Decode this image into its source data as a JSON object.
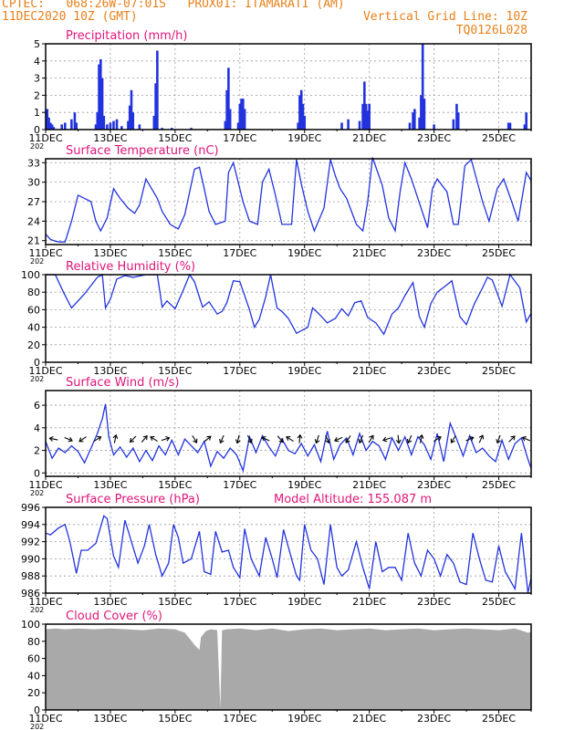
{
  "header": {
    "line1": "CPTEC:   068:26W-07:01S   PROX01: ITAMARATI (AM)",
    "line2_left": "11DEC2020 10Z (GMT)",
    "line2_right": "Vertical Grid Line: 10Z",
    "line3_right": "TQ0126L028"
  },
  "colors": {
    "header": "#e8801a",
    "title": "#e0167a",
    "series": "#2233dd",
    "cloud": "#a9a9a9",
    "grid": "#999999"
  },
  "date_labels": [
    "11DEC",
    "13DEC",
    "15DEC",
    "17DEC",
    "19DEC",
    "21DEC",
    "23DEC",
    "25DEC"
  ],
  "year_stub": "202",
  "chart_data": [
    {
      "id": "precip",
      "type": "bar",
      "title": "Precipitation (mm/h)",
      "ylim": [
        0,
        5
      ],
      "yticks": [
        0,
        1,
        2,
        3,
        4,
        5
      ],
      "grid": true,
      "x_unit": "days since 11DEC 10Z",
      "bars": [
        [
          0.05,
          1.2
        ],
        [
          0.1,
          0.7
        ],
        [
          0.15,
          0.4
        ],
        [
          0.2,
          0.3
        ],
        [
          0.25,
          0.15
        ],
        [
          0.5,
          0.3
        ],
        [
          0.6,
          0.4
        ],
        [
          0.8,
          0.6
        ],
        [
          0.9,
          1.0
        ],
        [
          0.95,
          0.4
        ],
        [
          1.55,
          0.3
        ],
        [
          1.6,
          1.0
        ],
        [
          1.65,
          3.8
        ],
        [
          1.7,
          4.1
        ],
        [
          1.75,
          3.0
        ],
        [
          1.8,
          0.8
        ],
        [
          1.9,
          0.3
        ],
        [
          2.0,
          0.4
        ],
        [
          2.1,
          0.5
        ],
        [
          2.2,
          0.6
        ],
        [
          2.35,
          0.2
        ],
        [
          2.55,
          0.5
        ],
        [
          2.6,
          1.4
        ],
        [
          2.65,
          2.3
        ],
        [
          2.7,
          1.0
        ],
        [
          2.9,
          0.3
        ],
        [
          3.35,
          0.8
        ],
        [
          3.4,
          2.7
        ],
        [
          3.45,
          4.6
        ],
        [
          3.6,
          0.1
        ],
        [
          3.9,
          0.1
        ],
        [
          4.5,
          0.1
        ],
        [
          5.55,
          0.5
        ],
        [
          5.6,
          2.3
        ],
        [
          5.65,
          3.6
        ],
        [
          5.7,
          1.2
        ],
        [
          5.95,
          0.4
        ],
        [
          6.0,
          1.5
        ],
        [
          6.05,
          1.8
        ],
        [
          6.1,
          1.8
        ],
        [
          6.15,
          1.2
        ],
        [
          7.8,
          0.4
        ],
        [
          7.85,
          2.0
        ],
        [
          7.9,
          2.3
        ],
        [
          7.95,
          1.5
        ],
        [
          8.0,
          0.8
        ],
        [
          9.15,
          0.4
        ],
        [
          9.35,
          0.6
        ],
        [
          9.7,
          0.5
        ],
        [
          9.8,
          1.5
        ],
        [
          9.85,
          2.8
        ],
        [
          9.9,
          1.5
        ],
        [
          9.95,
          1.1
        ],
        [
          10.0,
          1.5
        ],
        [
          11.25,
          0.4
        ],
        [
          11.35,
          1.0
        ],
        [
          11.4,
          1.2
        ],
        [
          11.55,
          0.7
        ],
        [
          11.6,
          2.0
        ],
        [
          11.65,
          5.0
        ],
        [
          11.7,
          1.8
        ],
        [
          12.0,
          0.3
        ],
        [
          12.6,
          0.6
        ],
        [
          12.7,
          1.5
        ],
        [
          12.75,
          1.0
        ],
        [
          14.3,
          0.4
        ],
        [
          14.35,
          0.4
        ],
        [
          14.8,
          0.3
        ],
        [
          14.85,
          1.0
        ]
      ]
    },
    {
      "id": "temp",
      "type": "line",
      "title": "Surface Temperature (nC)",
      "ylim": [
        20.4,
        33.6
      ],
      "yticks": [
        21,
        24,
        27,
        30,
        33
      ],
      "grid": true,
      "x": [
        0,
        0.15,
        0.3,
        0.45,
        0.6,
        0.8,
        1.0,
        1.2,
        1.4,
        1.55,
        1.7,
        1.9,
        2.1,
        2.3,
        2.55,
        2.75,
        2.9,
        3.1,
        3.25,
        3.45,
        3.6,
        3.85,
        4.1,
        4.3,
        4.6,
        4.75,
        4.9,
        5.05,
        5.25,
        5.55,
        5.65,
        5.8,
        5.95,
        6.1,
        6.3,
        6.55,
        6.7,
        6.9,
        7.1,
        7.3,
        7.6,
        7.75,
        7.9,
        8.1,
        8.3,
        8.6,
        8.8,
        8.95,
        9.1,
        9.3,
        9.6,
        9.8,
        9.95,
        10.1,
        10.4,
        10.6,
        10.8,
        10.95,
        11.1,
        11.3,
        11.6,
        11.8,
        11.95,
        12.1,
        12.4,
        12.6,
        12.75,
        12.95,
        13.15,
        13.5,
        13.7,
        13.95,
        14.15,
        14.4,
        14.6,
        14.85,
        15.0
      ],
      "y": [
        22,
        21.2,
        20.9,
        20.8,
        20.8,
        24,
        28,
        27.5,
        27,
        24,
        22.5,
        24.5,
        29,
        27.5,
        26,
        25.2,
        26.5,
        30.5,
        29.2,
        27.5,
        25.5,
        23.5,
        22.8,
        25,
        32,
        32.3,
        29,
        25.5,
        23.5,
        24,
        31.5,
        33,
        30,
        27,
        24,
        23.5,
        30,
        32,
        28,
        23.5,
        23.5,
        33.5,
        29.7,
        25.5,
        22.5,
        26,
        33.5,
        31,
        29,
        27.5,
        23.5,
        22.5,
        27,
        33.8,
        29.5,
        24.5,
        22.5,
        28.5,
        33,
        30.5,
        26,
        23,
        29,
        30.5,
        28.5,
        23.5,
        23.5,
        32.5,
        33.5,
        27,
        24,
        29,
        30.5,
        27,
        24,
        31.5,
        30.2
      ]
    },
    {
      "id": "rh",
      "type": "line",
      "title": "Relative Humidity (%)",
      "ylim": [
        0,
        100
      ],
      "yticks": [
        0,
        20,
        40,
        60,
        80,
        100
      ],
      "grid": true,
      "x": [
        0,
        0.3,
        0.55,
        0.8,
        1.2,
        1.6,
        1.75,
        1.85,
        2.0,
        2.2,
        2.45,
        2.7,
        2.85,
        3.1,
        3.45,
        3.6,
        3.75,
        4.0,
        4.25,
        4.45,
        4.6,
        4.85,
        5.05,
        5.3,
        5.45,
        5.6,
        5.8,
        6.0,
        6.3,
        6.45,
        6.6,
        6.8,
        6.95,
        7.15,
        7.3,
        7.5,
        7.75,
        8.1,
        8.25,
        8.45,
        8.7,
        8.95,
        9.15,
        9.35,
        9.55,
        9.75,
        9.95,
        10.2,
        10.45,
        10.7,
        10.9,
        11.1,
        11.35,
        11.55,
        11.7,
        11.9,
        12.1,
        12.35,
        12.55,
        12.8,
        13.0,
        13.25,
        13.5,
        13.65,
        13.8,
        14.1,
        14.35,
        14.65,
        14.85,
        15.0
      ],
      "y": [
        100,
        100,
        80,
        62,
        78,
        97,
        100,
        62,
        72,
        95,
        99,
        97,
        98,
        100,
        100,
        63,
        70,
        61,
        82,
        100,
        92,
        63,
        69,
        55,
        58,
        68,
        93,
        92,
        60,
        40,
        49,
        75,
        100,
        62,
        58,
        50,
        33,
        40,
        62,
        55,
        45,
        50,
        61,
        53,
        68,
        70,
        51,
        45,
        32,
        55,
        62,
        76,
        91,
        52,
        40,
        67,
        80,
        87,
        93,
        52,
        43,
        67,
        85,
        97,
        94,
        64,
        100,
        85,
        46,
        56
      ]
    },
    {
      "id": "wind",
      "type": "line",
      "title": "Surface Wind (m/s)",
      "ylim": [
        -0.3,
        7.3
      ],
      "yticks": [
        0,
        2,
        4,
        6
      ],
      "grid": true,
      "x": [
        0,
        0.2,
        0.4,
        0.6,
        0.8,
        1.0,
        1.2,
        1.4,
        1.6,
        1.75,
        1.85,
        1.95,
        2.1,
        2.3,
        2.5,
        2.7,
        2.9,
        3.1,
        3.3,
        3.5,
        3.7,
        3.9,
        4.1,
        4.3,
        4.5,
        4.7,
        4.9,
        5.1,
        5.3,
        5.5,
        5.7,
        5.9,
        6.1,
        6.3,
        6.5,
        6.7,
        6.9,
        7.1,
        7.3,
        7.5,
        7.7,
        7.9,
        8.1,
        8.3,
        8.5,
        8.7,
        8.9,
        9.1,
        9.3,
        9.5,
        9.7,
        9.9,
        10.1,
        10.3,
        10.5,
        10.7,
        10.9,
        11.1,
        11.3,
        11.5,
        11.7,
        11.9,
        12.1,
        12.3,
        12.5,
        12.7,
        12.9,
        13.1,
        13.3,
        13.5,
        13.7,
        13.9,
        14.1,
        14.3,
        14.5,
        14.7,
        14.9,
        15.0
      ],
      "y": [
        2.8,
        1.3,
        2.2,
        1.8,
        2.4,
        1.9,
        0.9,
        2.2,
        3.5,
        4.8,
        6.1,
        3.2,
        1.6,
        2.3,
        1.4,
        2.2,
        1.0,
        2.0,
        1.1,
        2.4,
        1.6,
        2.9,
        1.6,
        3.0,
        2.4,
        1.8,
        2.8,
        0.6,
        1.9,
        1.3,
        2.2,
        1.6,
        0.2,
        3.2,
        1.8,
        3.3,
        2.3,
        1.5,
        3.0,
        2.0,
        1.7,
        2.6,
        1.5,
        2.5,
        1.0,
        3.7,
        1.2,
        2.5,
        3.1,
        1.6,
        3.5,
        2.0,
        2.8,
        2.4,
        1.2,
        3.1,
        2.0,
        3.2,
        1.6,
        3.2,
        2.5,
        1.2,
        3.5,
        1.0,
        4.4,
        3.0,
        1.5,
        3.3,
        1.8,
        2.2,
        1.5,
        1.0,
        2.9,
        1.2,
        2.6,
        3.1,
        1.2,
        0.4
      ],
      "arrows": [
        [
          0.25,
          -1,
          0.2
        ],
        [
          0.7,
          1,
          -0.4
        ],
        [
          1.15,
          -0.9,
          -0.6
        ],
        [
          1.6,
          0.8,
          0.5
        ],
        [
          2.15,
          0.2,
          1
        ],
        [
          2.7,
          -0.7,
          -0.7
        ],
        [
          3.05,
          0.6,
          0.7
        ],
        [
          3.35,
          -0.8,
          0.5
        ],
        [
          3.7,
          0.9,
          0.3
        ],
        [
          4.6,
          0.5,
          -0.8
        ],
        [
          5.0,
          0.6,
          0.5
        ],
        [
          5.45,
          -0.4,
          -0.9
        ],
        [
          5.95,
          -0.2,
          -0.9
        ],
        [
          6.3,
          0.4,
          -0.8
        ],
        [
          6.8,
          -0.9,
          0.4
        ],
        [
          7.25,
          0.6,
          -0.7
        ],
        [
          7.55,
          -0.8,
          0.5
        ],
        [
          7.85,
          0.1,
          1
        ],
        [
          8.4,
          -0.3,
          -0.9
        ],
        [
          8.7,
          0.4,
          -0.9
        ],
        [
          9.05,
          -0.9,
          -0.4
        ],
        [
          9.35,
          -0.5,
          -0.8
        ],
        [
          9.75,
          -0.4,
          -0.9
        ],
        [
          10.05,
          0.5,
          0.8
        ],
        [
          10.55,
          -0.9,
          -0.3
        ],
        [
          10.9,
          0.1,
          -1
        ],
        [
          11.25,
          -0.4,
          -0.9
        ],
        [
          11.6,
          0.2,
          1
        ],
        [
          12.1,
          0.8,
          0.5
        ],
        [
          12.6,
          -0.5,
          -0.8
        ],
        [
          13.1,
          0.9,
          0.4
        ],
        [
          13.45,
          0.4,
          0.9
        ],
        [
          14.0,
          -0.3,
          -0.9
        ],
        [
          14.4,
          0.7,
          0.7
        ],
        [
          14.85,
          -0.9,
          0.4
        ]
      ]
    },
    {
      "id": "pres",
      "type": "line",
      "title": "Surface Pressure (hPa)",
      "annotation": "Model Altitude: 155.087 m",
      "ylim": [
        986,
        996
      ],
      "yticks": [
        986,
        988,
        990,
        992,
        994,
        996
      ],
      "grid": true,
      "x": [
        0,
        0.15,
        0.4,
        0.6,
        0.75,
        0.95,
        1.1,
        1.3,
        1.55,
        1.8,
        1.9,
        2.1,
        2.25,
        2.45,
        2.65,
        2.85,
        3.05,
        3.2,
        3.4,
        3.6,
        3.8,
        3.95,
        4.1,
        4.25,
        4.5,
        4.75,
        4.9,
        5.1,
        5.25,
        5.45,
        5.65,
        5.8,
        6.0,
        6.15,
        6.35,
        6.6,
        6.8,
        7.0,
        7.15,
        7.35,
        7.6,
        7.75,
        7.85,
        8.0,
        8.2,
        8.4,
        8.6,
        8.8,
        9.0,
        9.15,
        9.35,
        9.6,
        9.8,
        10.0,
        10.2,
        10.4,
        10.6,
        10.8,
        11.0,
        11.2,
        11.4,
        11.6,
        11.8,
        12.0,
        12.2,
        12.4,
        12.6,
        12.8,
        13.0,
        13.2,
        13.4,
        13.6,
        13.8,
        14.0,
        14.2,
        14.5,
        14.7,
        14.9,
        15.0
      ],
      "y": [
        993,
        992.8,
        993.6,
        994,
        992,
        988.3,
        991,
        991,
        991.8,
        995,
        994.7,
        990.3,
        989,
        994.5,
        992,
        989.5,
        991.5,
        994,
        990.5,
        988,
        989.5,
        994,
        992.5,
        989.5,
        990,
        993.2,
        988.5,
        988.2,
        993.2,
        990.8,
        991,
        989,
        987.8,
        993.5,
        990,
        988,
        992.5,
        990,
        987.8,
        993.4,
        990,
        988,
        987.5,
        994,
        991,
        990,
        987,
        994,
        989,
        988,
        988.7,
        992,
        989,
        986.5,
        992,
        988.5,
        989,
        989,
        987.5,
        993,
        989.5,
        988,
        991,
        990,
        988,
        990.5,
        989.5,
        987.3,
        987,
        993,
        990,
        987.5,
        987.3,
        991.5,
        988.5,
        986.5,
        993,
        986,
        987.8
      ]
    },
    {
      "id": "cloud",
      "type": "area",
      "title": "Cloud Cover (%)",
      "ylim": [
        0,
        100
      ],
      "yticks": [
        0,
        20,
        40,
        60,
        80,
        100
      ],
      "grid": false,
      "x": [
        0,
        0.3,
        0.6,
        1.0,
        1.5,
        2.0,
        2.5,
        3.0,
        3.5,
        4.0,
        4.3,
        4.6,
        4.75,
        4.8,
        4.95,
        5.1,
        5.3,
        5.4,
        5.45,
        5.6,
        6.0,
        6.5,
        7.0,
        7.5,
        8.0,
        8.5,
        9.0,
        9.5,
        10.0,
        10.5,
        11.0,
        11.5,
        12.0,
        12.5,
        13.0,
        13.5,
        14.0,
        14.5,
        14.9,
        15.0
      ],
      "y": [
        94,
        95,
        94,
        95,
        94,
        95,
        94,
        93,
        95,
        94,
        90,
        76,
        70,
        85,
        92,
        94,
        93,
        2,
        93,
        94,
        95,
        93,
        95,
        92,
        94,
        95,
        93,
        94,
        95,
        93,
        94,
        95,
        93,
        94,
        95,
        94,
        93,
        95,
        90,
        91
      ]
    }
  ]
}
